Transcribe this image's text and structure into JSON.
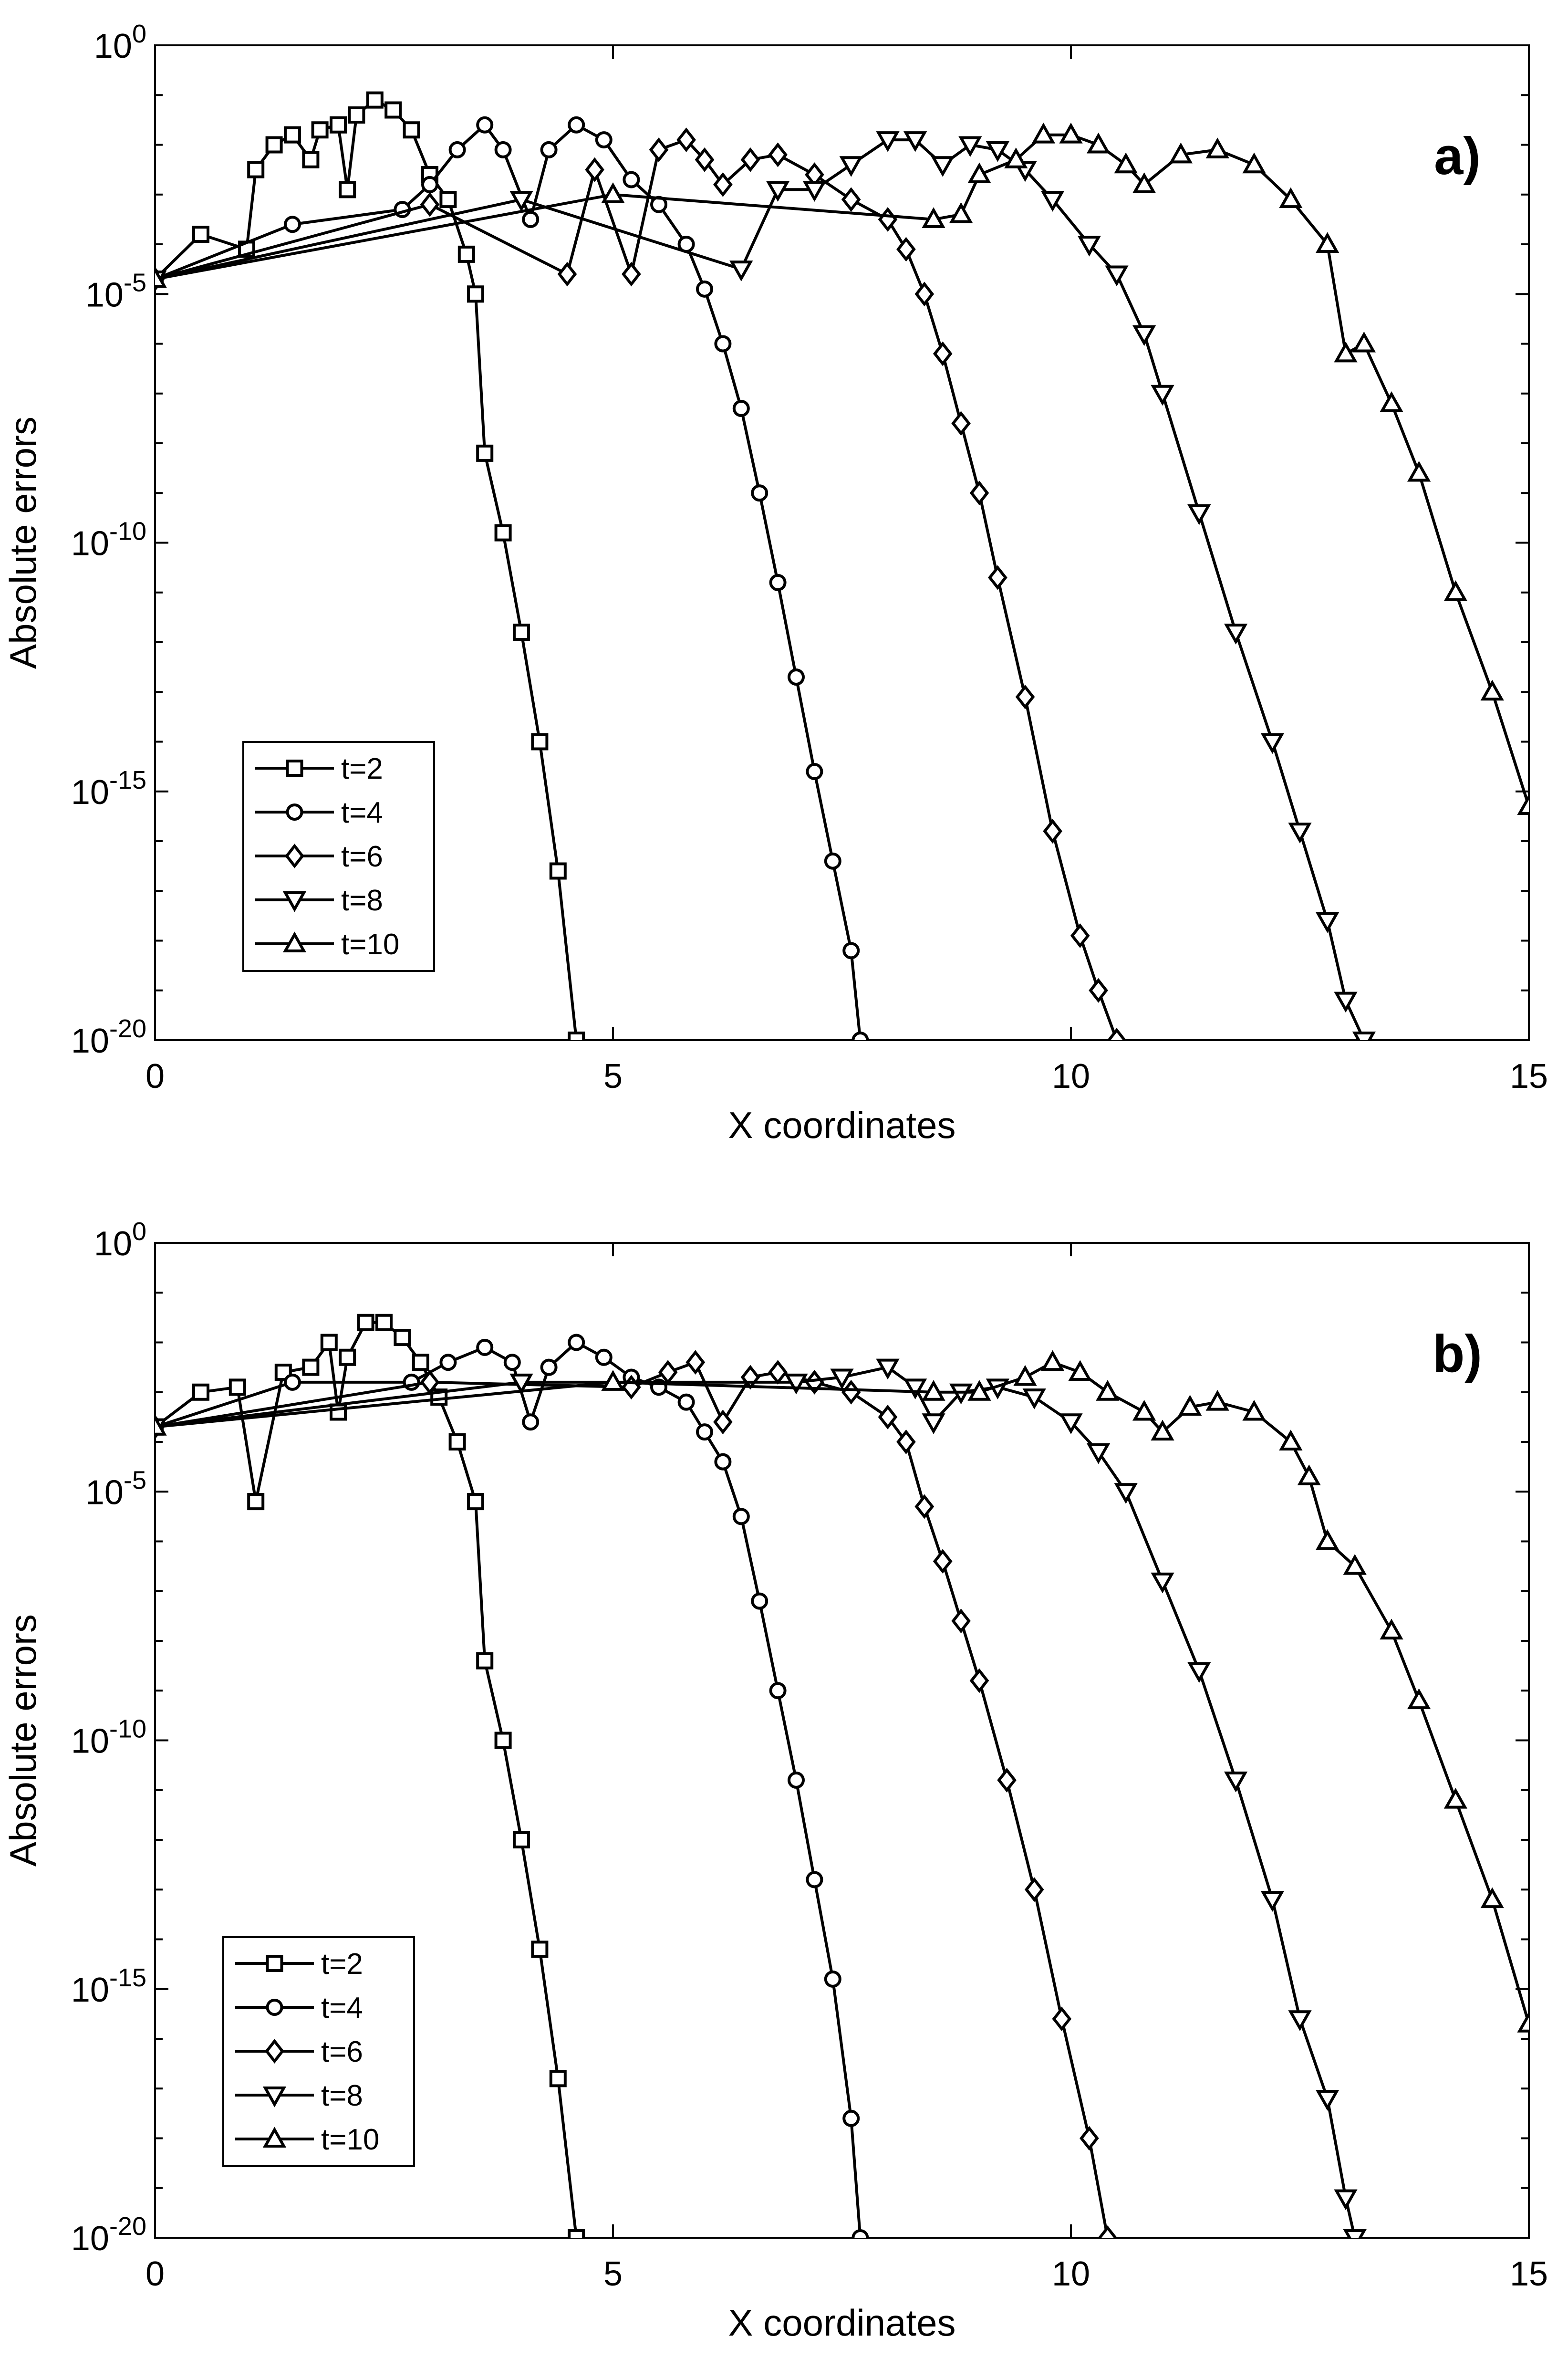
{
  "chart_data": [
    {
      "type": "line",
      "panel_label": "a)",
      "xlabel": "X coordinates",
      "ylabel": "Absolute errors",
      "yscale": "log",
      "xlim": [
        0,
        15
      ],
      "ylim": [
        1e-20,
        1
      ],
      "xticks": [
        {
          "value": 0,
          "label": "0"
        },
        {
          "value": 5,
          "label": "5"
        },
        {
          "value": 10,
          "label": "10"
        },
        {
          "value": 15,
          "label": "15"
        }
      ],
      "yticks": [
        {
          "exp": -20,
          "base": "10",
          "sup": "-20"
        },
        {
          "exp": -15,
          "base": "10",
          "sup": "-15"
        },
        {
          "exp": -10,
          "base": "10",
          "sup": "-10"
        },
        {
          "exp": -5,
          "base": "10",
          "sup": "-5"
        },
        {
          "exp": 0,
          "base": "10",
          "sup": "0"
        }
      ],
      "legend_position": "lower-left",
      "series": [
        {
          "name": "t=2",
          "marker": "square",
          "points": [
            [
              0,
              -4.7
            ],
            [
              0.5,
              -3.8
            ],
            [
              1.0,
              -4.1
            ],
            [
              1.1,
              -2.5
            ],
            [
              1.3,
              -2.0
            ],
            [
              1.5,
              -1.8
            ],
            [
              1.7,
              -2.3
            ],
            [
              1.8,
              -1.7
            ],
            [
              2.0,
              -1.6
            ],
            [
              2.1,
              -2.9
            ],
            [
              2.2,
              -1.4
            ],
            [
              2.4,
              -1.1
            ],
            [
              2.6,
              -1.3
            ],
            [
              2.8,
              -1.7
            ],
            [
              3.0,
              -2.6
            ],
            [
              3.2,
              -3.1
            ],
            [
              3.4,
              -4.2
            ],
            [
              3.5,
              -5.0
            ],
            [
              3.6,
              -8.2
            ],
            [
              3.8,
              -9.8
            ],
            [
              4.0,
              -11.8
            ],
            [
              4.2,
              -14.0
            ],
            [
              4.4,
              -16.6
            ],
            [
              4.6,
              -20.0
            ]
          ]
        },
        {
          "name": "t=4",
          "marker": "circle",
          "points": [
            [
              0,
              -4.7
            ],
            [
              1.5,
              -3.6
            ],
            [
              2.7,
              -3.3
            ],
            [
              3.0,
              -2.8
            ],
            [
              3.3,
              -2.1
            ],
            [
              3.6,
              -1.6
            ],
            [
              3.8,
              -2.1
            ],
            [
              4.1,
              -3.5
            ],
            [
              4.3,
              -2.1
            ],
            [
              4.6,
              -1.6
            ],
            [
              4.9,
              -1.9
            ],
            [
              5.2,
              -2.7
            ],
            [
              5.5,
              -3.2
            ],
            [
              5.8,
              -4.0
            ],
            [
              6.0,
              -4.9
            ],
            [
              6.2,
              -6.0
            ],
            [
              6.4,
              -7.3
            ],
            [
              6.6,
              -9.0
            ],
            [
              6.8,
              -10.8
            ],
            [
              7.0,
              -12.7
            ],
            [
              7.2,
              -14.6
            ],
            [
              7.4,
              -16.4
            ],
            [
              7.6,
              -18.2
            ],
            [
              7.7,
              -20.0
            ]
          ]
        },
        {
          "name": "t=6",
          "marker": "diamond",
          "points": [
            [
              0,
              -4.7
            ],
            [
              3.0,
              -3.2
            ],
            [
              4.5,
              -4.6
            ],
            [
              4.8,
              -2.5
            ],
            [
              5.2,
              -4.6
            ],
            [
              5.5,
              -2.1
            ],
            [
              5.8,
              -1.9
            ],
            [
              6.0,
              -2.3
            ],
            [
              6.2,
              -2.8
            ],
            [
              6.5,
              -2.3
            ],
            [
              6.8,
              -2.2
            ],
            [
              7.2,
              -2.6
            ],
            [
              7.6,
              -3.1
            ],
            [
              8.0,
              -3.5
            ],
            [
              8.2,
              -4.1
            ],
            [
              8.4,
              -5.0
            ],
            [
              8.6,
              -6.2
            ],
            [
              8.8,
              -7.6
            ],
            [
              9.0,
              -9.0
            ],
            [
              9.2,
              -10.7
            ],
            [
              9.5,
              -13.1
            ],
            [
              9.8,
              -15.8
            ],
            [
              10.1,
              -17.9
            ],
            [
              10.3,
              -19.0
            ],
            [
              10.5,
              -20.0
            ]
          ]
        },
        {
          "name": "t=8",
          "marker": "triangle-down",
          "points": [
            [
              0,
              -4.7
            ],
            [
              4.0,
              -3.1
            ],
            [
              6.4,
              -4.5
            ],
            [
              6.8,
              -2.9
            ],
            [
              7.2,
              -2.9
            ],
            [
              7.6,
              -2.4
            ],
            [
              8.0,
              -1.9
            ],
            [
              8.3,
              -1.9
            ],
            [
              8.6,
              -2.4
            ],
            [
              8.9,
              -2.0
            ],
            [
              9.2,
              -2.1
            ],
            [
              9.5,
              -2.5
            ],
            [
              9.8,
              -3.1
            ],
            [
              10.2,
              -4.0
            ],
            [
              10.5,
              -4.6
            ],
            [
              10.8,
              -5.8
            ],
            [
              11.0,
              -7.0
            ],
            [
              11.4,
              -9.4
            ],
            [
              11.8,
              -11.8
            ],
            [
              12.2,
              -14.0
            ],
            [
              12.5,
              -15.8
            ],
            [
              12.8,
              -17.6
            ],
            [
              13.0,
              -19.2
            ],
            [
              13.2,
              -20.0
            ]
          ]
        },
        {
          "name": "t=10",
          "marker": "triangle-up",
          "points": [
            [
              0,
              -4.7
            ],
            [
              5.0,
              -3.0
            ],
            [
              8.5,
              -3.5
            ],
            [
              8.8,
              -3.4
            ],
            [
              9.0,
              -2.6
            ],
            [
              9.4,
              -2.3
            ],
            [
              9.7,
              -1.8
            ],
            [
              10.0,
              -1.8
            ],
            [
              10.3,
              -2.0
            ],
            [
              10.6,
              -2.4
            ],
            [
              10.8,
              -2.8
            ],
            [
              11.2,
              -2.2
            ],
            [
              11.6,
              -2.1
            ],
            [
              12.0,
              -2.4
            ],
            [
              12.4,
              -3.1
            ],
            [
              12.8,
              -4.0
            ],
            [
              13.0,
              -6.2
            ],
            [
              13.2,
              -6.0
            ],
            [
              13.5,
              -7.2
            ],
            [
              13.8,
              -8.6
            ],
            [
              14.2,
              -11.0
            ],
            [
              14.6,
              -13.0
            ],
            [
              15.0,
              -15.3
            ]
          ]
        }
      ]
    },
    {
      "type": "line",
      "panel_label": "b)",
      "xlabel": "X coordinates",
      "ylabel": "Absolute errors",
      "yscale": "log",
      "xlim": [
        0,
        15
      ],
      "ylim": [
        1e-20,
        1
      ],
      "xticks": [
        {
          "value": 0,
          "label": "0"
        },
        {
          "value": 5,
          "label": "5"
        },
        {
          "value": 10,
          "label": "10"
        },
        {
          "value": 15,
          "label": "15"
        }
      ],
      "yticks": [
        {
          "exp": -20,
          "base": "10",
          "sup": "-20"
        },
        {
          "exp": -15,
          "base": "10",
          "sup": "-15"
        },
        {
          "exp": -10,
          "base": "10",
          "sup": "-10"
        },
        {
          "exp": -5,
          "base": "10",
          "sup": "-5"
        },
        {
          "exp": 0,
          "base": "10",
          "sup": "0"
        }
      ],
      "legend_position": "lower-left",
      "series": [
        {
          "name": "t=2",
          "marker": "square",
          "points": [
            [
              0,
              -3.7
            ],
            [
              0.5,
              -3.0
            ],
            [
              0.9,
              -2.9
            ],
            [
              1.1,
              -5.2
            ],
            [
              1.4,
              -2.6
            ],
            [
              1.7,
              -2.5
            ],
            [
              1.9,
              -2.0
            ],
            [
              2.0,
              -3.4
            ],
            [
              2.1,
              -2.3
            ],
            [
              2.3,
              -1.6
            ],
            [
              2.5,
              -1.6
            ],
            [
              2.7,
              -1.9
            ],
            [
              2.9,
              -2.4
            ],
            [
              3.1,
              -3.1
            ],
            [
              3.3,
              -4.0
            ],
            [
              3.5,
              -5.2
            ],
            [
              3.6,
              -8.4
            ],
            [
              3.8,
              -10.0
            ],
            [
              4.0,
              -12.0
            ],
            [
              4.2,
              -14.2
            ],
            [
              4.4,
              -16.8
            ],
            [
              4.6,
              -20.0
            ]
          ]
        },
        {
          "name": "t=4",
          "marker": "circle",
          "points": [
            [
              0,
              -3.7
            ],
            [
              1.5,
              -2.8
            ],
            [
              2.8,
              -2.8
            ],
            [
              3.2,
              -2.4
            ],
            [
              3.6,
              -2.1
            ],
            [
              3.9,
              -2.4
            ],
            [
              4.1,
              -3.6
            ],
            [
              4.3,
              -2.5
            ],
            [
              4.6,
              -2.0
            ],
            [
              4.9,
              -2.3
            ],
            [
              5.2,
              -2.7
            ],
            [
              5.5,
              -2.9
            ],
            [
              5.8,
              -3.2
            ],
            [
              6.0,
              -3.8
            ],
            [
              6.2,
              -4.4
            ],
            [
              6.4,
              -5.5
            ],
            [
              6.6,
              -7.2
            ],
            [
              6.8,
              -9.0
            ],
            [
              7.0,
              -10.8
            ],
            [
              7.2,
              -12.8
            ],
            [
              7.4,
              -14.8
            ],
            [
              7.6,
              -17.6
            ],
            [
              7.7,
              -20.0
            ]
          ]
        },
        {
          "name": "t=6",
          "marker": "diamond",
          "points": [
            [
              0,
              -3.7
            ],
            [
              3.0,
              -2.8
            ],
            [
              5.2,
              -2.9
            ],
            [
              5.6,
              -2.6
            ],
            [
              5.9,
              -2.4
            ],
            [
              6.2,
              -3.6
            ],
            [
              6.5,
              -2.7
            ],
            [
              6.8,
              -2.6
            ],
            [
              7.2,
              -2.8
            ],
            [
              7.6,
              -3.0
            ],
            [
              8.0,
              -3.5
            ],
            [
              8.2,
              -4.0
            ],
            [
              8.4,
              -5.3
            ],
            [
              8.6,
              -6.4
            ],
            [
              8.8,
              -7.6
            ],
            [
              9.0,
              -8.8
            ],
            [
              9.3,
              -10.8
            ],
            [
              9.6,
              -13.0
            ],
            [
              9.9,
              -15.6
            ],
            [
              10.2,
              -18.0
            ],
            [
              10.4,
              -20.0
            ]
          ]
        },
        {
          "name": "t=8",
          "marker": "triangle-down",
          "points": [
            [
              0,
              -3.7
            ],
            [
              4.0,
              -2.8
            ],
            [
              7.0,
              -2.8
            ],
            [
              7.5,
              -2.7
            ],
            [
              8.0,
              -2.5
            ],
            [
              8.3,
              -2.9
            ],
            [
              8.5,
              -3.6
            ],
            [
              8.8,
              -3.0
            ],
            [
              9.2,
              -2.9
            ],
            [
              9.6,
              -3.1
            ],
            [
              10.0,
              -3.6
            ],
            [
              10.3,
              -4.2
            ],
            [
              10.6,
              -5.0
            ],
            [
              11.0,
              -6.8
            ],
            [
              11.4,
              -8.6
            ],
            [
              11.8,
              -10.8
            ],
            [
              12.2,
              -13.2
            ],
            [
              12.5,
              -15.6
            ],
            [
              12.8,
              -17.2
            ],
            [
              13.0,
              -19.2
            ],
            [
              13.1,
              -20.0
            ]
          ]
        },
        {
          "name": "t=10",
          "marker": "triangle-up",
          "points": [
            [
              0,
              -3.7
            ],
            [
              5.0,
              -2.8
            ],
            [
              8.5,
              -3.0
            ],
            [
              9.0,
              -3.0
            ],
            [
              9.5,
              -2.7
            ],
            [
              9.8,
              -2.4
            ],
            [
              10.1,
              -2.6
            ],
            [
              10.4,
              -3.0
            ],
            [
              10.8,
              -3.4
            ],
            [
              11.0,
              -3.8
            ],
            [
              11.3,
              -3.3
            ],
            [
              11.6,
              -3.2
            ],
            [
              12.0,
              -3.4
            ],
            [
              12.4,
              -4.0
            ],
            [
              12.6,
              -4.7
            ],
            [
              12.8,
              -6.0
            ],
            [
              13.1,
              -6.5
            ],
            [
              13.5,
              -7.8
            ],
            [
              13.8,
              -9.2
            ],
            [
              14.2,
              -11.2
            ],
            [
              14.6,
              -13.2
            ],
            [
              15.0,
              -15.7
            ]
          ]
        }
      ]
    }
  ]
}
